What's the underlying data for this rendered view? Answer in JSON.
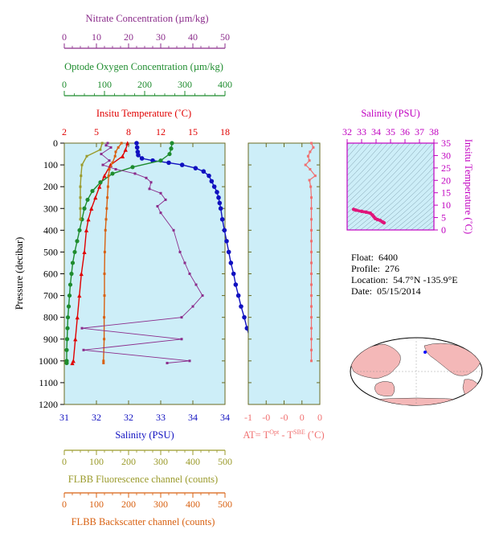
{
  "chart_data": {
    "type": "line",
    "float_info": {
      "float_label": "Float:",
      "float_value": "6400",
      "profile_label": "Profile:",
      "profile_value": "276",
      "location_label": "Location:",
      "location_value": "54.7°N  -135.9°E",
      "date_label": "Date:",
      "date_value": "05/15/2014"
    },
    "main_profile": {
      "ylabel": "Pressure (decibar)",
      "y_ticks": [
        0,
        100,
        200,
        300,
        400,
        500,
        600,
        700,
        800,
        900,
        1000,
        1100,
        1200
      ],
      "ylim": [
        0,
        1200
      ],
      "axes": {
        "nitrate": {
          "label": "Nitrate Concentration (µm/kg)",
          "ticks": [
            "0",
            "10",
            "20",
            "30",
            "40",
            "50"
          ],
          "range": [
            0,
            50
          ],
          "color": "#8b2c8b"
        },
        "oxygen": {
          "label": "Optode Oxygen Concentration (µm/kg)",
          "ticks": [
            "0",
            "100",
            "200",
            "300",
            "400"
          ],
          "range": [
            0,
            400
          ],
          "color": "#1e8c2e"
        },
        "temperature": {
          "label": "Insitu Temperature (˚C)",
          "ticks": [
            "2",
            "5",
            "8",
            "12",
            "15",
            "18"
          ],
          "range": [
            2,
            18
          ],
          "color": "#e00000"
        },
        "salinity": {
          "label": "Salinity (PSU)",
          "ticks": [
            "31",
            "32",
            "32",
            "33",
            "34",
            "34"
          ],
          "range": [
            31,
            34
          ],
          "color": "#1010c0"
        },
        "fluorescence": {
          "label": "FLBB Fluorescence channel (counts)",
          "ticks": [
            "0",
            "100",
            "200",
            "300",
            "400",
            "500"
          ],
          "range": [
            0,
            500
          ],
          "color": "#9a9a2a"
        },
        "backscatter": {
          "label": "FLBB Backscatter channel (counts)",
          "ticks": [
            "0",
            "100",
            "200",
            "300",
            "400",
            "500"
          ],
          "range": [
            0,
            500
          ],
          "color": "#d86010"
        }
      },
      "series": [
        {
          "key": "salinity",
          "color": "#1010c0",
          "points": [
            [
              32.35,
              0
            ],
            [
              32.36,
              20
            ],
            [
              32.37,
              40
            ],
            [
              32.38,
              55
            ],
            [
              32.45,
              70
            ],
            [
              32.65,
              80
            ],
            [
              32.95,
              90
            ],
            [
              33.2,
              100
            ],
            [
              33.45,
              115
            ],
            [
              33.6,
              130
            ],
            [
              33.7,
              150
            ],
            [
              33.75,
              175
            ],
            [
              33.8,
              200
            ],
            [
              33.85,
              225
            ],
            [
              33.88,
              250
            ],
            [
              33.9,
              275
            ],
            [
              33.92,
              300
            ],
            [
              33.95,
              350
            ],
            [
              33.99,
              400
            ],
            [
              34.03,
              450
            ],
            [
              34.07,
              500
            ],
            [
              34.11,
              550
            ],
            [
              34.16,
              600
            ],
            [
              34.2,
              650
            ],
            [
              34.25,
              700
            ],
            [
              34.3,
              750
            ],
            [
              34.36,
              800
            ],
            [
              34.41,
              850
            ],
            [
              34.47,
              900
            ],
            [
              34.52,
              950
            ],
            [
              34.56,
              1000
            ],
            [
              34.57,
              1010
            ]
          ]
        },
        {
          "key": "temperature",
          "color": "#e00000",
          "points": [
            [
              8.3,
              0
            ],
            [
              8.1,
              30
            ],
            [
              7.8,
              60
            ],
            [
              6.6,
              100
            ],
            [
              6.0,
              150
            ],
            [
              5.5,
              200
            ],
            [
              5.1,
              250
            ],
            [
              4.7,
              300
            ],
            [
              4.4,
              350
            ],
            [
              4.2,
              400
            ],
            [
              4.0,
              500
            ],
            [
              3.7,
              600
            ],
            [
              3.5,
              700
            ],
            [
              3.3,
              800
            ],
            [
              3.1,
              900
            ],
            [
              2.9,
              1000
            ],
            [
              2.8,
              1010
            ]
          ]
        },
        {
          "key": "oxygen",
          "color": "#1e8c2e",
          "points": [
            [
              268,
              0
            ],
            [
              266,
              25
            ],
            [
              262,
              50
            ],
            [
              240,
              80
            ],
            [
              170,
              110
            ],
            [
              120,
              140
            ],
            [
              90,
              180
            ],
            [
              70,
              220
            ],
            [
              58,
              260
            ],
            [
              50,
              300
            ],
            [
              44,
              350
            ],
            [
              38,
              400
            ],
            [
              32,
              450
            ],
            [
              26,
              500
            ],
            [
              21,
              550
            ],
            [
              18,
              600
            ],
            [
              15,
              650
            ],
            [
              13,
              700
            ],
            [
              11,
              750
            ],
            [
              9,
              800
            ],
            [
              8,
              850
            ],
            [
              7,
              900
            ],
            [
              6,
              950
            ],
            [
              6,
              1000
            ],
            [
              6,
              1010
            ]
          ]
        },
        {
          "key": "fluorescence",
          "color": "#9a9a2a",
          "points": [
            [
              118,
              0
            ],
            [
              112,
              30
            ],
            [
              70,
              60
            ],
            [
              55,
              100
            ],
            [
              52,
              150
            ],
            [
              50,
              200
            ],
            [
              50,
              250
            ],
            [
              50,
              300
            ],
            [
              50,
              350
            ]
          ]
        },
        {
          "key": "backscatter",
          "color": "#d86010",
          "points": [
            [
              178,
              0
            ],
            [
              168,
              20
            ],
            [
              160,
              40
            ],
            [
              158,
              60
            ],
            [
              150,
              90
            ],
            [
              140,
              120
            ],
            [
              138,
              150
            ],
            [
              136,
              200
            ],
            [
              134,
              250
            ],
            [
              132,
              300
            ],
            [
              130,
              350
            ],
            [
              128,
              400
            ],
            [
              126,
              500
            ],
            [
              125,
              600
            ],
            [
              125,
              700
            ],
            [
              124,
              800
            ],
            [
              124,
              900
            ],
            [
              122,
              1000
            ],
            [
              122,
              1010
            ]
          ]
        },
        {
          "key": "nitrate",
          "color": "#8b2c8b",
          "points": [
            [
              13.5,
              0
            ],
            [
              13.0,
              10
            ],
            [
              14.5,
              20
            ],
            [
              11.5,
              50
            ],
            [
              14.0,
              80
            ],
            [
              12.0,
              100
            ],
            [
              16.0,
              120
            ],
            [
              22.0,
              140
            ],
            [
              25.5,
              160
            ],
            [
              27.0,
              180
            ],
            [
              26.5,
              210
            ],
            [
              30.0,
              230
            ],
            [
              31.5,
              260
            ],
            [
              29.0,
              290
            ],
            [
              30.0,
              320
            ],
            [
              34.0,
              400
            ],
            [
              36.0,
              500
            ],
            [
              37.5,
              550
            ],
            [
              39.0,
              600
            ],
            [
              41.0,
              650
            ],
            [
              43.0,
              700
            ],
            [
              40.0,
              750
            ],
            [
              36.5,
              800
            ],
            [
              5.5,
              850
            ],
            [
              36.5,
              900
            ],
            [
              6.0,
              950
            ],
            [
              39.0,
              1000
            ],
            [
              32.0,
              1010
            ]
          ]
        }
      ]
    },
    "at_panel": {
      "xlabel_prefix": "AT= T",
      "xlabel_sup1": "Opt",
      "xlabel_mid": " - T",
      "xlabel_sup2": "SBE",
      "xlabel_suffix": " (˚C)",
      "ticks": [
        "-1",
        "-0",
        "-0",
        "0",
        "0"
      ],
      "range": [
        -1,
        0.1
      ],
      "color": "#f07070",
      "points": [
        [
          -0.03,
          0
        ],
        [
          0.0,
          20
        ],
        [
          -0.05,
          40
        ],
        [
          -0.08,
          60
        ],
        [
          -0.06,
          80
        ],
        [
          -0.12,
          100
        ],
        [
          -0.05,
          120
        ],
        [
          0.03,
          150
        ],
        [
          -0.06,
          170
        ],
        [
          -0.04,
          200
        ],
        [
          -0.03,
          250
        ],
        [
          -0.03,
          300
        ],
        [
          -0.03,
          350
        ],
        [
          -0.03,
          400
        ],
        [
          -0.03,
          450
        ],
        [
          -0.03,
          500
        ],
        [
          -0.03,
          550
        ],
        [
          -0.03,
          600
        ],
        [
          -0.03,
          650
        ],
        [
          -0.03,
          700
        ],
        [
          -0.03,
          750
        ],
        [
          -0.03,
          800
        ],
        [
          -0.03,
          850
        ],
        [
          -0.03,
          900
        ],
        [
          -0.03,
          950
        ],
        [
          -0.03,
          1000
        ]
      ]
    },
    "ts_panel": {
      "title": "Salinity (PSU)",
      "x_ticks": [
        "32",
        "33",
        "34",
        "35",
        "36",
        "37",
        "38"
      ],
      "xlim": [
        32,
        38
      ],
      "y_label": "Insitu Temperature (˚C)",
      "y_ticks": [
        "0",
        "5",
        "10",
        "15",
        "20",
        "25",
        "30",
        "35"
      ],
      "ylim": [
        0,
        35
      ],
      "color": "#e0157a",
      "axis_color": "#c000c0",
      "points": [
        [
          32.45,
          8.3
        ],
        [
          32.6,
          8.0
        ],
        [
          33.0,
          7.5
        ],
        [
          33.3,
          7.2
        ],
        [
          33.6,
          6.8
        ],
        [
          33.75,
          6.0
        ],
        [
          33.85,
          5.3
        ],
        [
          33.95,
          4.6
        ],
        [
          34.1,
          4.2
        ],
        [
          34.3,
          3.8
        ],
        [
          34.45,
          3.2
        ],
        [
          34.55,
          2.9
        ]
      ]
    }
  }
}
